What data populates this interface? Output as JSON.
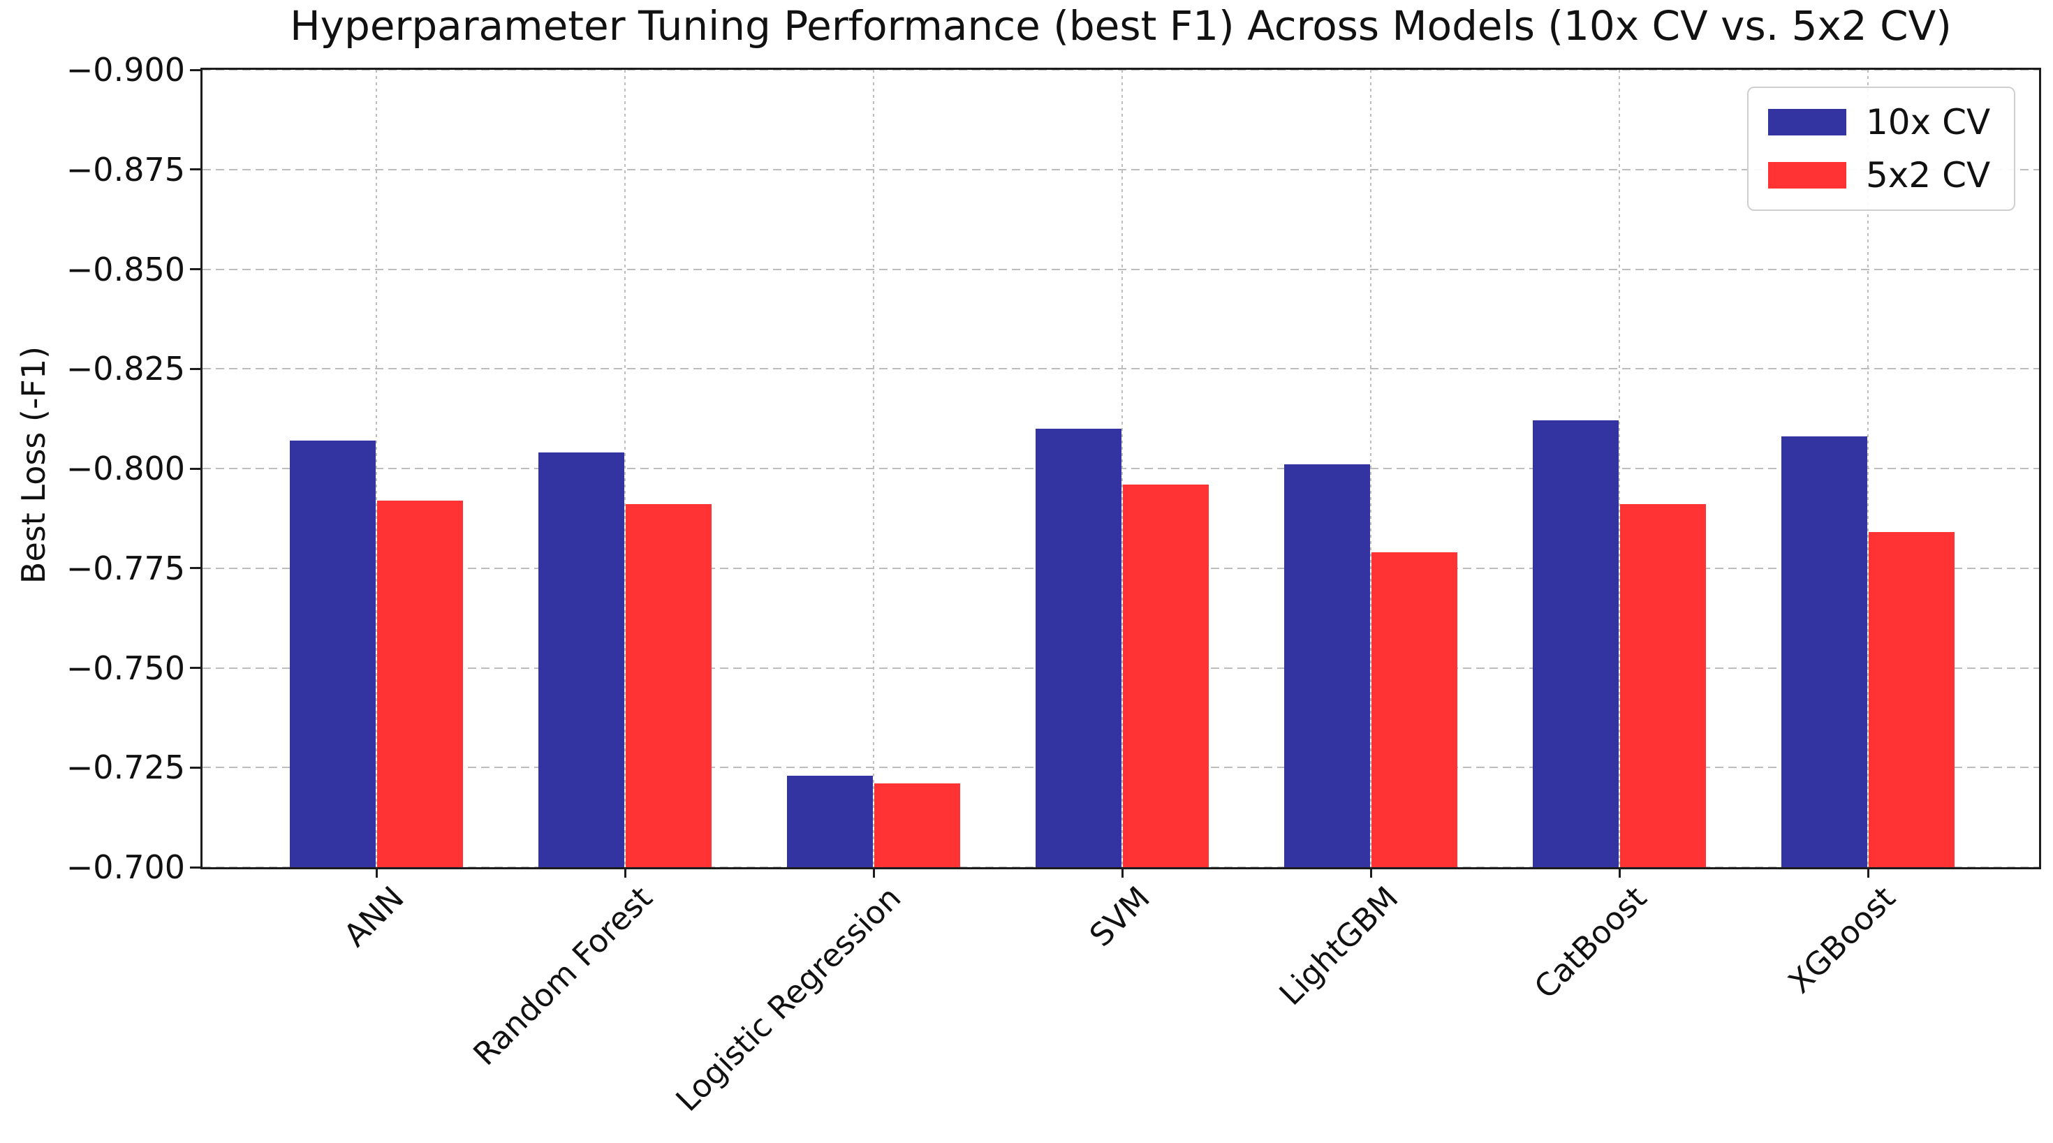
{
  "chart_data": {
    "type": "bar",
    "title": "Hyperparameter Tuning Performance (best F1) Across Models (10x CV vs. 5x2 CV)",
    "xlabel": "",
    "ylabel": "Best Loss (-F1)",
    "categories": [
      "ANN",
      "Random Forest",
      "Logistic Regression",
      "SVM",
      "LightGBM",
      "CatBoost",
      "XGBoost"
    ],
    "series": [
      {
        "name": "10x CV",
        "color": "#3333a2",
        "values": [
          -0.807,
          -0.804,
          -0.723,
          -0.81,
          -0.801,
          -0.812,
          -0.808
        ]
      },
      {
        "name": "5x2 CV",
        "color": "#ff3333",
        "values": [
          -0.792,
          -0.791,
          -0.721,
          -0.796,
          -0.779,
          -0.791,
          -0.784
        ]
      }
    ],
    "ylim": [
      -0.9,
      -0.7
    ],
    "y_axis_inverted": true,
    "ytick_values": [
      -0.9,
      -0.875,
      -0.85,
      -0.825,
      -0.8,
      -0.775,
      -0.75,
      -0.725,
      -0.7
    ],
    "ytick_labels": [
      "−0.900",
      "−0.875",
      "−0.850",
      "−0.825",
      "−0.800",
      "−0.775",
      "−0.750",
      "−0.725",
      "−0.700"
    ],
    "grid": true,
    "legend": {
      "position": "upper right",
      "items": [
        {
          "label": "10x CV",
          "color": "#3333a2"
        },
        {
          "label": "5x2 CV",
          "color": "#ff3333"
        }
      ]
    }
  }
}
